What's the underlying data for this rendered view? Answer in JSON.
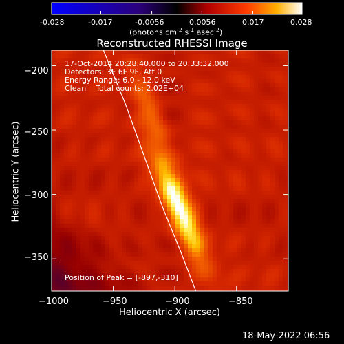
{
  "colorbar": {
    "ticks": [
      "-0.028",
      "-0.017",
      "-0.0056",
      "0.0056",
      "0.017",
      "0.028"
    ],
    "tick_values": [
      -0.028,
      -0.017,
      -0.0056,
      0.0056,
      0.017,
      0.028
    ],
    "range": [
      -0.028,
      0.028
    ],
    "unit_text": "(photons cm",
    "unit_sup1": "-2",
    "unit_mid": " s",
    "unit_sup2": "-1",
    "unit_mid2": " asec",
    "unit_sup3": "-2",
    "unit_end": ")",
    "colors": [
      "#0000ff",
      "#000000",
      "#ff0000",
      "#ffff00",
      "#ffffff"
    ]
  },
  "chart_data": {
    "type": "heatmap",
    "title": "Reconstructed RHESSI Image",
    "xlabel": "Heliocentric X (arcsec)",
    "ylabel": "Heliocentric Y (arcsec)",
    "xlim": [
      -1000,
      -808
    ],
    "ylim": [
      -375,
      -188
    ],
    "xticks": [
      -1000,
      -950,
      -900,
      -850
    ],
    "yticks": [
      -200,
      -250,
      -300,
      -350
    ],
    "xtick_labels": [
      "−1000",
      "−950",
      "−900",
      "−850"
    ],
    "ytick_labels": [
      "−200",
      "−250",
      "−300",
      "−350"
    ],
    "peak": {
      "x": -897,
      "y": -310
    },
    "limb": [
      [
        -958,
        -188
      ],
      [
        -940,
        -230
      ],
      [
        -925,
        -270
      ],
      [
        -910,
        -310
      ],
      [
        -895,
        -345
      ],
      [
        -883,
        -375
      ]
    ],
    "info_lines": [
      "17-Oct-2014 20:28:40.000 to 20:33:32.000",
      "Detectors: 3F 6F 9F, Att 0",
      "Energy Range: 6.0 - 12.0 keV",
      "Clean    Total counts: 2.02E+04"
    ],
    "peak_label": "Position of Peak = [-897,-310]"
  },
  "timestamp": "18-May-2022 06:56"
}
